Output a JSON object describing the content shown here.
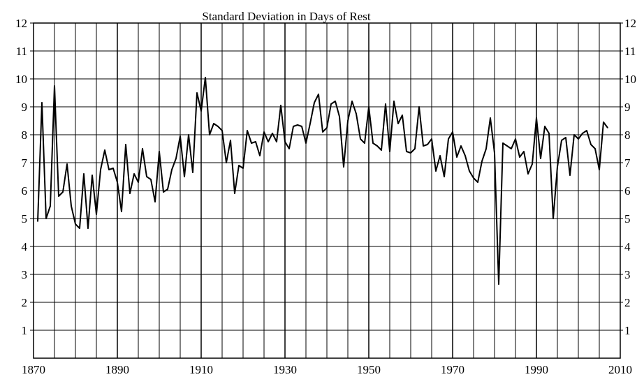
{
  "chart_data": {
    "type": "line",
    "title": "Standard Deviation in Days of Rest",
    "xlabel": "",
    "ylabel": "",
    "xlim": [
      1870,
      2010
    ],
    "ylim": [
      0,
      12
    ],
    "xticks": [
      1870,
      1890,
      1910,
      1930,
      1950,
      1970,
      1990,
      2010
    ],
    "yticks": [
      1,
      2,
      3,
      4,
      5,
      6,
      7,
      8,
      9,
      10,
      11,
      12
    ],
    "grid": true,
    "line_color": "#000000",
    "series": [
      {
        "x": [
          1871,
          1872,
          1873,
          1874,
          1875,
          1876,
          1877,
          1878,
          1879,
          1880,
          1881,
          1882,
          1883,
          1884,
          1885,
          1886,
          1887,
          1888,
          1889,
          1890,
          1891,
          1892,
          1893,
          1894,
          1895,
          1896,
          1897,
          1898,
          1899,
          1900,
          1901,
          1902,
          1903,
          1904,
          1905,
          1906,
          1907,
          1908,
          1909,
          1910,
          1911,
          1912,
          1913,
          1914,
          1915,
          1916,
          1917,
          1918,
          1919,
          1920,
          1921,
          1922,
          1923,
          1924,
          1925,
          1926,
          1927,
          1928,
          1929,
          1930,
          1931,
          1932,
          1933,
          1934,
          1935,
          1936,
          1937,
          1938,
          1939,
          1940,
          1941,
          1942,
          1943,
          1944,
          1945,
          1946,
          1947,
          1948,
          1949,
          1950,
          1951,
          1952,
          1953,
          1954,
          1955,
          1956,
          1957,
          1958,
          1959,
          1960,
          1961,
          1962,
          1963,
          1964,
          1965,
          1966,
          1967,
          1968,
          1969,
          1970,
          1971,
          1972,
          1973,
          1974,
          1975,
          1976,
          1977,
          1978,
          1979,
          1980,
          1981,
          1982,
          1983,
          1984,
          1985,
          1986,
          1987,
          1988,
          1989,
          1990,
          1991,
          1992,
          1993,
          1994,
          1995,
          1996,
          1997,
          1998,
          1999,
          2000,
          2001,
          2002,
          2003,
          2004,
          2005,
          2006,
          2007
        ],
        "values": [
          4.9,
          9.15,
          5.0,
          5.45,
          9.75,
          5.8,
          5.95,
          6.95,
          5.45,
          4.8,
          4.65,
          6.6,
          4.65,
          6.55,
          5.15,
          6.75,
          7.45,
          6.75,
          6.8,
          6.3,
          5.25,
          7.65,
          5.9,
          6.6,
          6.3,
          7.5,
          6.5,
          6.4,
          5.6,
          7.4,
          5.95,
          6.05,
          6.75,
          7.15,
          7.95,
          6.5,
          8.0,
          6.65,
          9.5,
          8.85,
          10.05,
          8.0,
          8.4,
          8.3,
          8.15,
          7.0,
          7.8,
          5.9,
          6.9,
          6.8,
          8.15,
          7.7,
          7.75,
          7.25,
          8.1,
          7.75,
          8.05,
          7.75,
          9.05,
          7.75,
          7.5,
          8.3,
          8.35,
          8.3,
          7.7,
          8.4,
          9.15,
          9.45,
          8.1,
          8.25,
          9.1,
          9.2,
          8.65,
          6.85,
          8.5,
          9.2,
          8.75,
          7.85,
          7.7,
          9.0,
          7.7,
          7.6,
          7.45,
          9.1,
          7.4,
          9.2,
          8.4,
          8.7,
          7.4,
          7.35,
          7.5,
          9.0,
          7.6,
          7.65,
          7.85,
          6.7,
          7.25,
          6.5,
          7.85,
          8.1,
          7.2,
          7.6,
          7.25,
          6.7,
          6.45,
          6.3,
          7.05,
          7.5,
          8.6,
          7.35,
          2.65,
          7.7,
          7.6,
          7.5,
          7.85,
          7.2,
          7.4,
          6.6,
          6.95,
          8.6,
          7.15,
          8.3,
          8.05,
          5.0,
          6.85,
          7.8,
          7.9,
          6.55,
          8.0,
          7.85,
          8.05,
          8.15,
          7.65,
          7.5,
          6.75,
          8.45,
          8.25
        ]
      }
    ]
  }
}
